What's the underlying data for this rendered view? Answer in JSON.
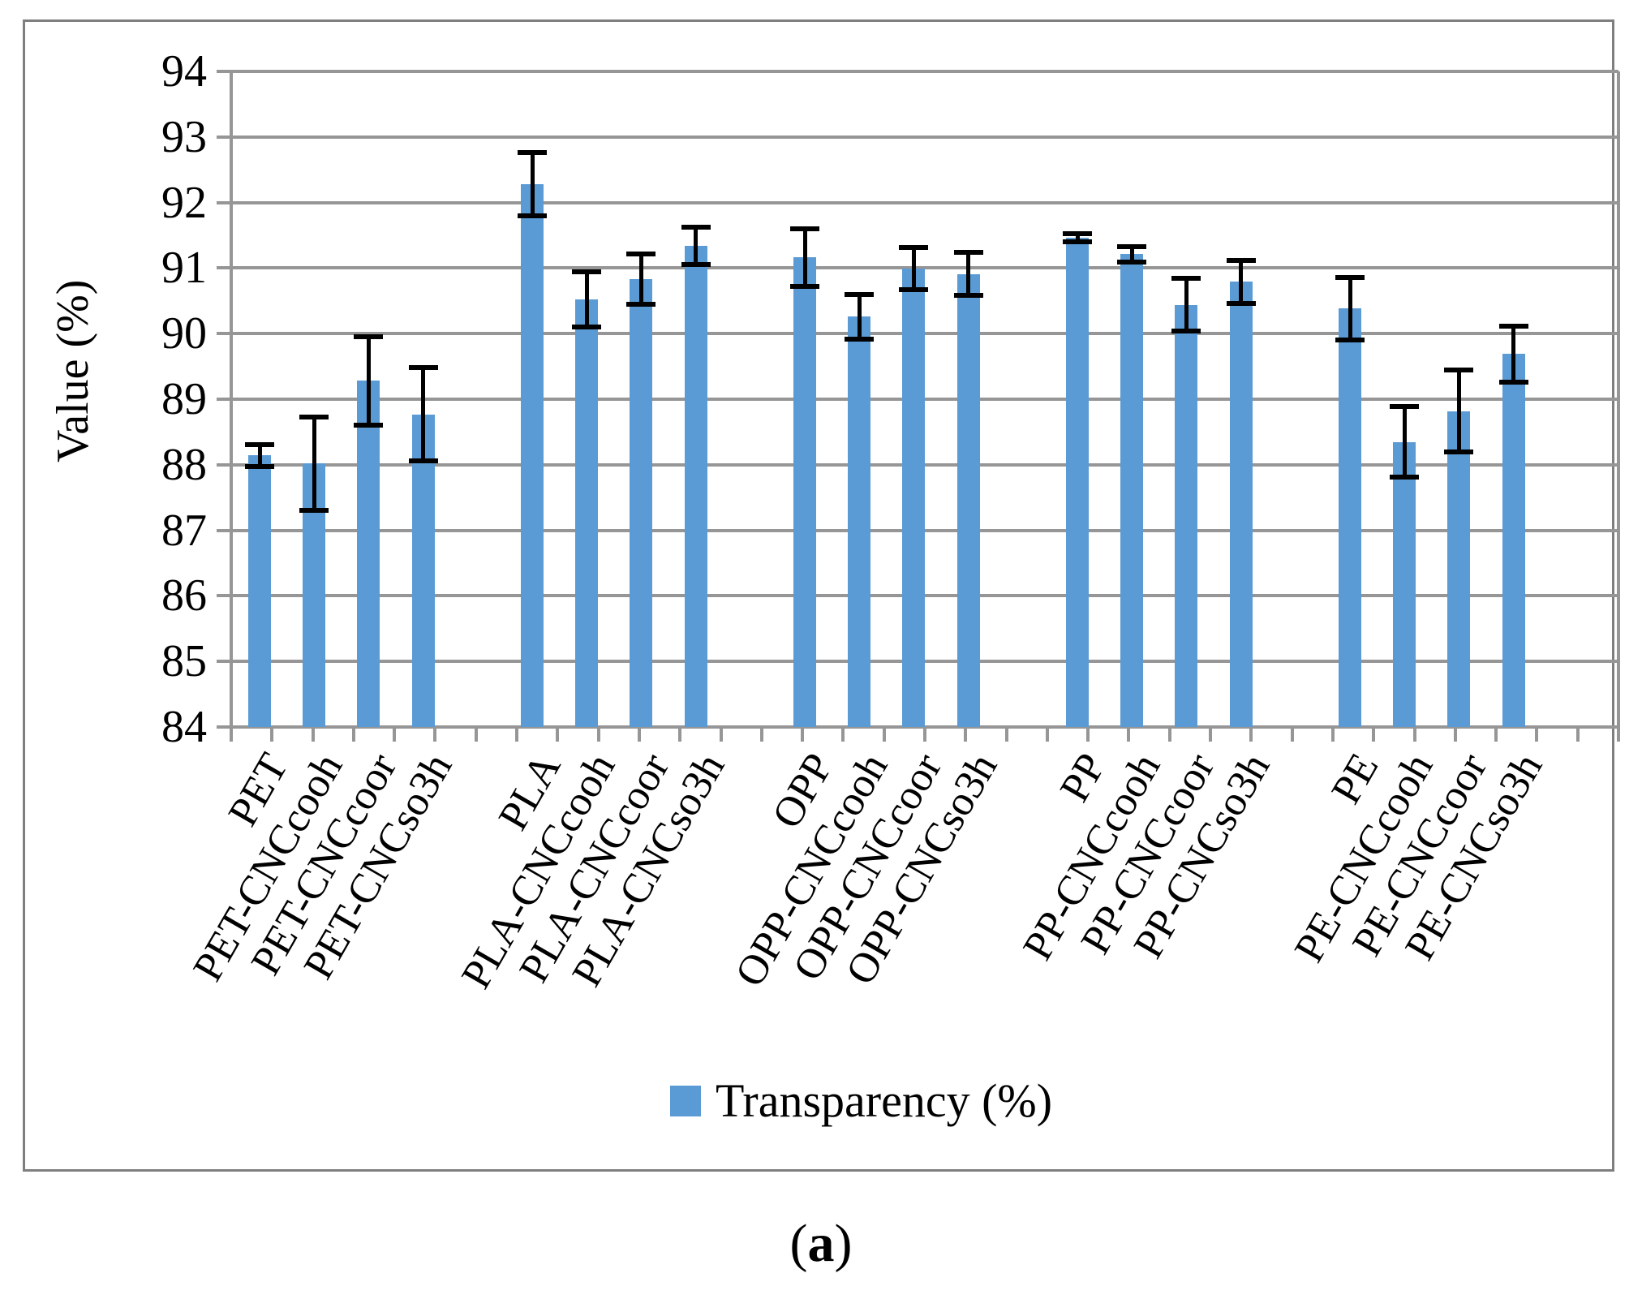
{
  "figure": {
    "caption": {
      "open": "(",
      "letter": "a",
      "close": ")"
    }
  },
  "chart_data": {
    "type": "bar",
    "title": "",
    "xlabel": "",
    "ylabel": "Value (%)",
    "ylim": [
      84,
      94
    ],
    "ytick_step": 1,
    "yticks": [
      94,
      93,
      92,
      91,
      90,
      89,
      88,
      87,
      86,
      85,
      84
    ],
    "grid": true,
    "bars_per_group": 4,
    "bar_color": "#5B9BD5",
    "error_bar_color": "#000000",
    "gridline_color": "#969696",
    "frame_border_color": "#7f7f7f",
    "legend": {
      "label": "Transparency (%)",
      "position": "bottom-center",
      "swatch_color": "#5B9BD5"
    },
    "categories": [
      "PET",
      "PET-CNCcooh",
      "PET-CNCcoor",
      "PET-CNCso3h",
      "PLA",
      "PLA-CNCcooh",
      "PLA-CNCcoor",
      "PLA-CNCso3h",
      "OPP",
      "OPP-CNCcooh",
      "OPP-CNCcoor",
      "OPP-CNCso3h",
      "PP",
      "PP-CNCcooh",
      "PP-CNCcoor",
      "PP-CNCso3h",
      "PE",
      "PE-CNCcooh",
      "PE-CNCcoor",
      "PE-CNCso3h"
    ],
    "series": [
      {
        "name": "Transparency (%)",
        "values": [
          88.14,
          88.02,
          89.28,
          88.77,
          92.28,
          90.52,
          90.83,
          91.34,
          91.16,
          90.26,
          90.99,
          90.91,
          91.46,
          91.21,
          90.44,
          90.79,
          90.38,
          88.35,
          88.82,
          89.69
        ],
        "errors": [
          0.17,
          0.71,
          0.67,
          0.71,
          0.48,
          0.42,
          0.38,
          0.28,
          0.44,
          0.34,
          0.32,
          0.33,
          0.06,
          0.12,
          0.4,
          0.33,
          0.48,
          0.54,
          0.62,
          0.43
        ]
      }
    ]
  }
}
